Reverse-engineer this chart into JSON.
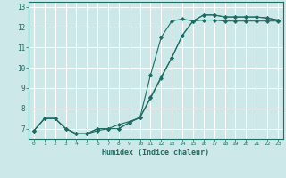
{
  "xlabel": "Humidex (Indice chaleur)",
  "bg_color": "#cce8e8",
  "grid_color": "#ffffff",
  "line_color": "#1a6e64",
  "xlim": [
    -0.5,
    23.5
  ],
  "ylim": [
    6.5,
    13.25
  ],
  "xticks": [
    0,
    1,
    2,
    3,
    4,
    5,
    6,
    7,
    8,
    9,
    10,
    11,
    12,
    13,
    14,
    15,
    16,
    17,
    18,
    19,
    20,
    21,
    22,
    23
  ],
  "yticks": [
    7,
    8,
    9,
    10,
    11,
    12,
    13
  ],
  "line1_x": [
    0,
    1,
    2,
    3,
    4,
    5,
    6,
    7,
    8,
    9,
    10,
    11,
    12,
    13,
    14,
    15,
    16,
    17,
    18,
    19,
    20,
    21,
    22,
    23
  ],
  "line1_y": [
    6.9,
    7.5,
    7.5,
    7.0,
    6.75,
    6.75,
    6.9,
    7.0,
    7.2,
    7.35,
    7.55,
    8.5,
    9.5,
    10.5,
    11.6,
    12.3,
    12.6,
    12.6,
    12.5,
    12.5,
    12.5,
    12.5,
    12.45,
    12.35
  ],
  "line2_x": [
    0,
    1,
    2,
    3,
    4,
    5,
    6,
    7,
    8,
    9,
    10,
    11,
    12,
    13,
    14,
    15,
    16,
    17,
    18,
    19,
    20,
    21,
    22,
    23
  ],
  "line2_y": [
    6.9,
    7.5,
    7.5,
    7.0,
    6.75,
    6.75,
    7.0,
    7.0,
    7.0,
    7.3,
    7.55,
    8.55,
    9.55,
    10.5,
    11.6,
    12.3,
    12.6,
    12.6,
    12.5,
    12.5,
    12.5,
    12.5,
    12.45,
    12.35
  ],
  "line3_x": [
    0,
    1,
    2,
    3,
    4,
    5,
    6,
    7,
    8,
    9,
    10,
    11,
    12,
    13,
    14,
    15,
    16,
    17,
    18,
    19,
    20,
    21,
    22,
    23
  ],
  "line3_y": [
    6.9,
    7.5,
    7.5,
    7.0,
    6.75,
    6.75,
    7.0,
    7.0,
    7.0,
    7.3,
    7.55,
    9.65,
    11.5,
    12.3,
    12.4,
    12.3,
    12.35,
    12.35,
    12.3,
    12.3,
    12.3,
    12.3,
    12.3,
    12.3
  ]
}
